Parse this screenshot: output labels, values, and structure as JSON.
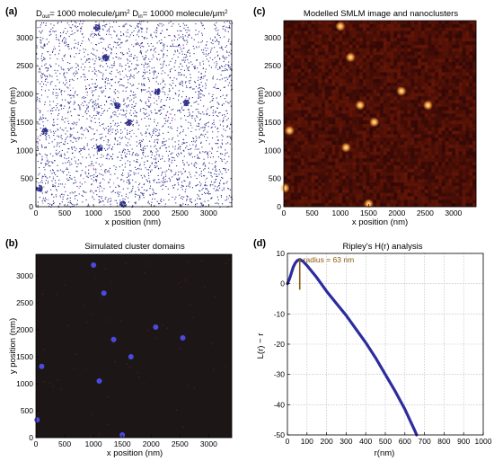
{
  "colors": {
    "molecule": "#2c2c8c",
    "stray": "#d070c0",
    "cluster_glow": "#ffae4a",
    "smlm_bg": "#3a0a04",
    "domain_bg": "#1c1616",
    "domain_dot": "#4a4adf",
    "curve": "#2c2c9e",
    "radius_marker": "#8a5a10"
  },
  "chart_data": [
    {
      "id": "a",
      "panel_label": "(a)",
      "type": "scatter",
      "title_parts": {
        "d_out_label": "D",
        "d_out_sub": "out",
        "d_out_value": "= 1000 molecule/μm",
        "d_out_sup": "2",
        "d_in_label": "D",
        "d_in_sub": "in",
        "d_in_value": "= 10000 molecule/μm",
        "d_in_sup": "2"
      },
      "xlabel": "x position (nm)",
      "ylabel": "y position (nm)",
      "xlim": [
        0,
        3400
      ],
      "ylim": [
        0,
        3300
      ],
      "xticks": [
        0,
        500,
        1000,
        1500,
        2000,
        2500,
        3000
      ],
      "yticks": [
        0,
        500,
        1000,
        1500,
        2000,
        2500,
        3000
      ],
      "background_density_per_um2": 1000,
      "cluster_density_per_um2": 10000,
      "clusters": [
        {
          "x": 1050,
          "y": 3180
        },
        {
          "x": 1200,
          "y": 2650
        },
        {
          "x": 2100,
          "y": 2050
        },
        {
          "x": 1400,
          "y": 1800
        },
        {
          "x": 2600,
          "y": 1850
        },
        {
          "x": 150,
          "y": 1350
        },
        {
          "x": 1600,
          "y": 1500
        },
        {
          "x": 1100,
          "y": 1050
        },
        {
          "x": 50,
          "y": 330
        },
        {
          "x": 1500,
          "y": 50
        }
      ]
    },
    {
      "id": "b",
      "panel_label": "(b)",
      "type": "scatter",
      "title": "Simulated cluster domains",
      "xlabel": "x position (nm)",
      "ylabel": "y position (nm)",
      "xlim": [
        0,
        3400
      ],
      "ylim": [
        0,
        3400
      ],
      "xticks": [
        0,
        500,
        1000,
        1500,
        2000,
        2500,
        3000
      ],
      "yticks": [
        0,
        500,
        1000,
        1500,
        2000,
        2500,
        3000
      ],
      "points": [
        {
          "x": 1000,
          "y": 3200
        },
        {
          "x": 1180,
          "y": 2680
        },
        {
          "x": 1350,
          "y": 1820
        },
        {
          "x": 2080,
          "y": 2050
        },
        {
          "x": 2550,
          "y": 1850
        },
        {
          "x": 100,
          "y": 1320
        },
        {
          "x": 1650,
          "y": 1500
        },
        {
          "x": 1100,
          "y": 1050
        },
        {
          "x": 20,
          "y": 330
        },
        {
          "x": 1500,
          "y": 50
        }
      ]
    },
    {
      "id": "c",
      "panel_label": "(c)",
      "type": "heatmap",
      "title": "Modelled SMLM image and nanoclusters",
      "xlabel": "x position (nm)",
      "ylabel": "y position (nm)",
      "xlim": [
        0,
        3400
      ],
      "ylim": [
        0,
        3300
      ],
      "xticks": [
        0,
        500,
        1000,
        1500,
        2000,
        2500,
        3000
      ],
      "yticks": [
        0,
        500,
        1000,
        1500,
        2000,
        2500,
        3000
      ],
      "clusters": [
        {
          "x": 1000,
          "y": 3200
        },
        {
          "x": 1180,
          "y": 2650
        },
        {
          "x": 1350,
          "y": 1800
        },
        {
          "x": 2080,
          "y": 2050
        },
        {
          "x": 2550,
          "y": 1800
        },
        {
          "x": 100,
          "y": 1350
        },
        {
          "x": 1600,
          "y": 1500
        },
        {
          "x": 1100,
          "y": 1050
        },
        {
          "x": 20,
          "y": 330
        },
        {
          "x": 1500,
          "y": 50
        }
      ]
    },
    {
      "id": "d",
      "panel_label": "(d)",
      "type": "line",
      "title": "Ripley's H(r) analysis",
      "xlabel": "r(nm)",
      "ylabel": "L(r) − r",
      "xlim": [
        0,
        1000
      ],
      "ylim": [
        -50,
        10
      ],
      "grid": true,
      "xticks": [
        0,
        100,
        200,
        300,
        400,
        500,
        600,
        700,
        800,
        900,
        1000
      ],
      "yticks": [
        -50,
        -40,
        -30,
        -20,
        -10,
        0,
        10
      ],
      "annotation": "radius = 63 nm",
      "peak_r": 63,
      "series": [
        {
          "x": [
            0,
            10,
            20,
            30,
            40,
            50,
            63,
            80,
            100,
            150,
            200,
            250,
            300,
            350,
            400,
            450,
            500,
            550,
            600,
            650,
            660
          ],
          "y": [
            0,
            1.5,
            3.5,
            5.5,
            6.8,
            7.6,
            8.0,
            7.4,
            6.0,
            2.0,
            -2.5,
            -6.5,
            -10.5,
            -15.0,
            -19.5,
            -24.5,
            -30.0,
            -35.5,
            -41.5,
            -48.5,
            -50
          ]
        }
      ]
    }
  ]
}
